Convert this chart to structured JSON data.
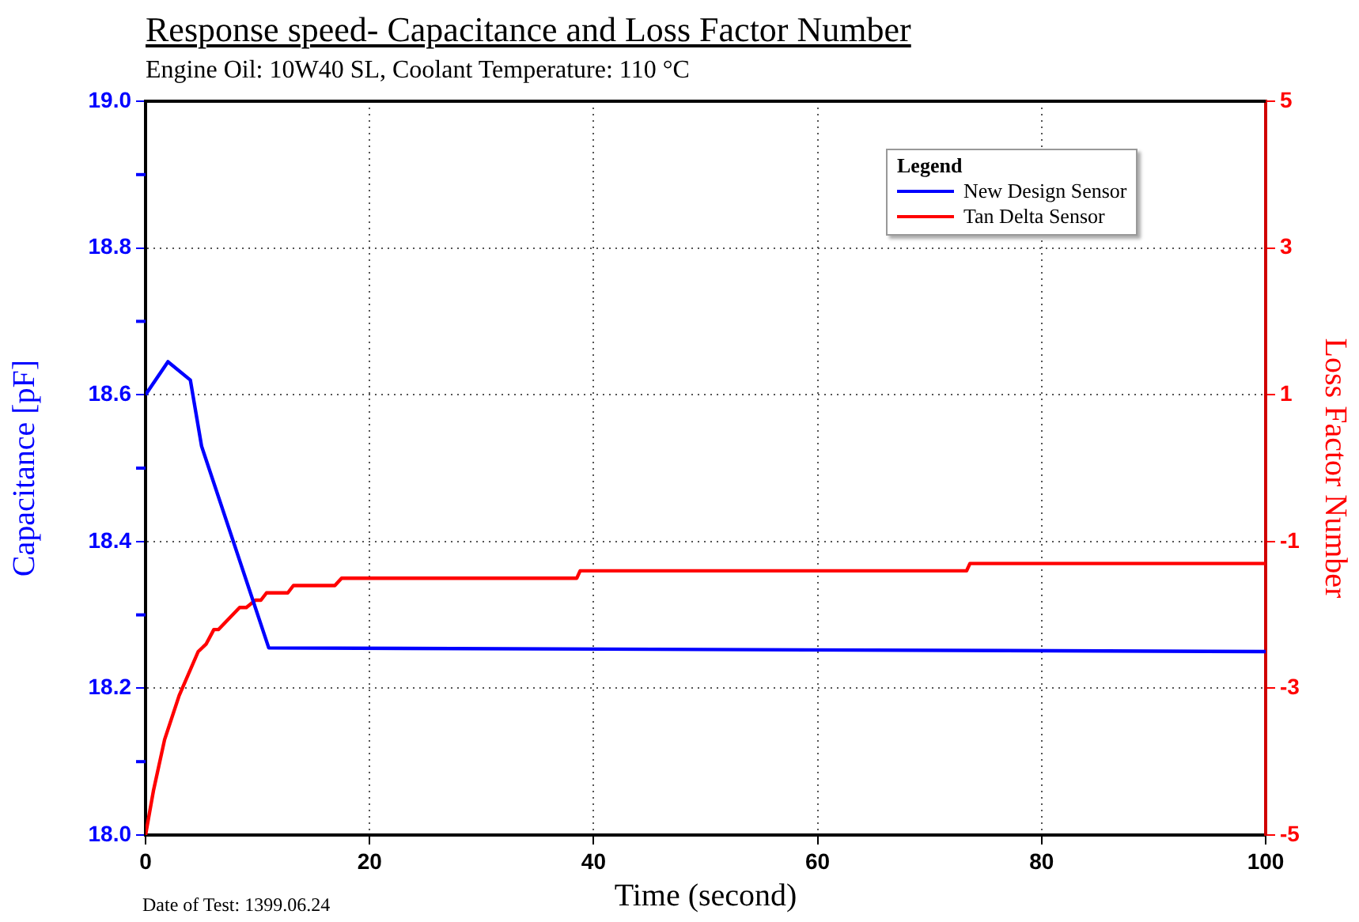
{
  "chart_data": {
    "type": "line",
    "title": "Response speed- Capacitance and Loss Factor Number",
    "subtitle": "Engine Oil: 10W40 SL, Coolant Temperature: 110 °C",
    "xlabel": "Time (second)",
    "ylabel": "Capacitance [pF]",
    "y2label": "Loss Factor Number",
    "legend_title": "Legend",
    "annotations": [
      "Date of Test: 1399.06.24"
    ],
    "xlim": [
      0,
      100
    ],
    "xticks": [
      0,
      20,
      40,
      60,
      80,
      100
    ],
    "ylim": [
      18.0,
      19.0
    ],
    "yticks": [
      {
        "value": 18,
        "label": "18.0"
      },
      {
        "value": 18.1,
        "label": null
      },
      18.2,
      {
        "value": 18.3,
        "label": null
      },
      18.4,
      {
        "value": 18.5,
        "label": null
      },
      18.6,
      {
        "value": 18.7,
        "label": null
      },
      18.8,
      {
        "value": 18.9,
        "label": null
      },
      {
        "value": 19,
        "label": "19.0"
      }
    ],
    "y2lim": [
      -5,
      5
    ],
    "y2ticks": [
      -5,
      -3,
      -1,
      1,
      3,
      5
    ],
    "grid": true,
    "legend": "top right",
    "marker": "none",
    "line_style": "solid",
    "series": [
      {
        "name": "New Design Sensor",
        "color": "#0000ff",
        "x": [
          0,
          2,
          4,
          5,
          11,
          100
        ],
        "values": [
          18.6,
          18.645,
          18.62,
          18.53,
          18.255,
          18.25
        ]
      },
      {
        "name": "Tan Delta Sensor",
        "color": "#ff0000",
        "axis": "y2",
        "x": [
          0,
          0.7,
          1.7,
          3,
          4.7,
          5.4,
          6.1,
          6.5,
          8.4,
          9,
          9.8,
          10.3,
          10.8,
          12.7,
          13.2,
          16.9,
          17.5,
          38.5,
          38.8,
          73.3,
          73.6,
          100
        ],
        "values": [
          -5,
          -4.4,
          -3.7,
          -3.1,
          -2.5,
          -2.4,
          -2.2,
          -2.2,
          -1.9,
          -1.9,
          -1.8,
          -1.8,
          -1.7,
          -1.7,
          -1.6,
          -1.6,
          -1.5,
          -1.5,
          -1.4,
          -1.4,
          -1.3,
          -1.3
        ]
      }
    ]
  }
}
